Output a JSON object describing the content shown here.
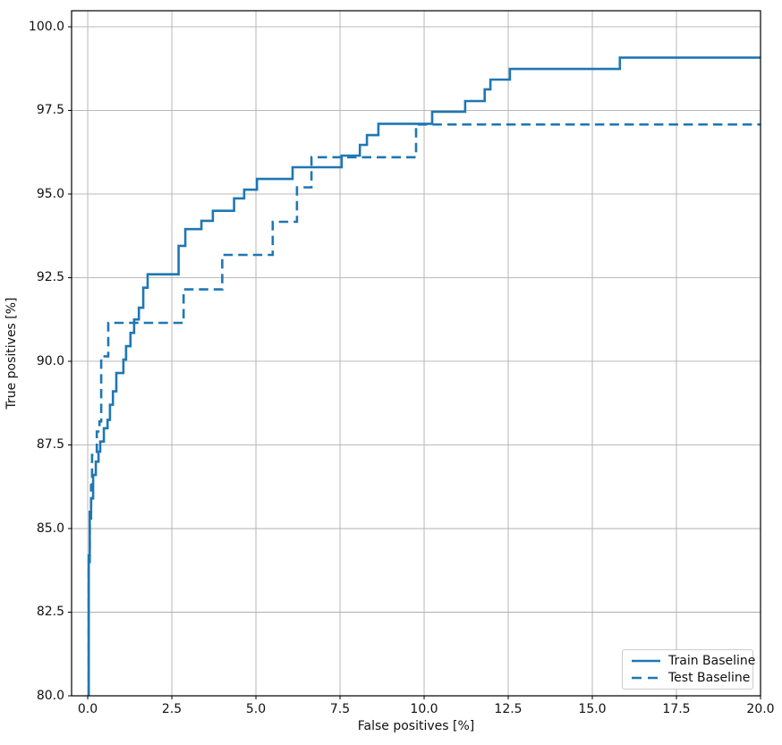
{
  "chart_data": {
    "type": "line",
    "subtype": "step-post-roc",
    "title": "",
    "xlabel": "False positives [%]",
    "ylabel": "True positives [%]",
    "xlim": [
      -0.48,
      20
    ],
    "ylim": [
      80,
      100.48
    ],
    "grid": true,
    "grid_color": "#b0b0b0",
    "spine_color": "#000000",
    "background_color": "#ffffff",
    "legend_position": "lower right",
    "x_ticks": [
      0.0,
      2.5,
      5.0,
      7.5,
      10.0,
      12.5,
      15.0,
      17.5,
      20.0
    ],
    "y_ticks": [
      80.0,
      82.5,
      85.0,
      87.5,
      90.0,
      92.5,
      95.0,
      97.5,
      100.0
    ],
    "x_tick_labels": [
      "0.0",
      "2.5",
      "5.0",
      "7.5",
      "10.0",
      "12.5",
      "15.0",
      "17.5",
      "20.0"
    ],
    "y_tick_labels": [
      "80.0",
      "82.5",
      "85.0",
      "87.5",
      "90.0",
      "92.5",
      "95.0",
      "97.5",
      "100.0"
    ],
    "series": [
      {
        "name": "Train Baseline",
        "style": "solid",
        "color": "#1f77b4",
        "line_width": 2.6,
        "points": [
          [
            0.03,
            80.0
          ],
          [
            0.03,
            84.0
          ],
          [
            0.06,
            84.0
          ],
          [
            0.06,
            85.3
          ],
          [
            0.1,
            85.3
          ],
          [
            0.1,
            85.9
          ],
          [
            0.16,
            85.9
          ],
          [
            0.16,
            86.6
          ],
          [
            0.24,
            86.6
          ],
          [
            0.24,
            87.0
          ],
          [
            0.32,
            87.0
          ],
          [
            0.32,
            87.3
          ],
          [
            0.37,
            87.3
          ],
          [
            0.37,
            87.6
          ],
          [
            0.48,
            87.6
          ],
          [
            0.48,
            88.0
          ],
          [
            0.59,
            88.0
          ],
          [
            0.59,
            88.25
          ],
          [
            0.66,
            88.25
          ],
          [
            0.66,
            88.7
          ],
          [
            0.75,
            88.7
          ],
          [
            0.75,
            89.1
          ],
          [
            0.85,
            89.1
          ],
          [
            0.85,
            89.65
          ],
          [
            1.06,
            89.65
          ],
          [
            1.06,
            90.05
          ],
          [
            1.14,
            90.05
          ],
          [
            1.14,
            90.45
          ],
          [
            1.27,
            90.45
          ],
          [
            1.27,
            90.85
          ],
          [
            1.38,
            90.85
          ],
          [
            1.38,
            91.25
          ],
          [
            1.52,
            91.25
          ],
          [
            1.52,
            91.6
          ],
          [
            1.65,
            91.6
          ],
          [
            1.65,
            92.2
          ],
          [
            1.78,
            92.2
          ],
          [
            1.78,
            92.6
          ],
          [
            2.7,
            92.6
          ],
          [
            2.7,
            93.45
          ],
          [
            2.9,
            93.45
          ],
          [
            2.9,
            93.95
          ],
          [
            3.38,
            93.95
          ],
          [
            3.38,
            94.2
          ],
          [
            3.72,
            94.2
          ],
          [
            3.72,
            94.5
          ],
          [
            4.35,
            94.5
          ],
          [
            4.35,
            94.87
          ],
          [
            4.65,
            94.87
          ],
          [
            4.65,
            95.13
          ],
          [
            5.03,
            95.13
          ],
          [
            5.03,
            95.45
          ],
          [
            6.09,
            95.45
          ],
          [
            6.09,
            95.8
          ],
          [
            7.55,
            95.8
          ],
          [
            7.55,
            96.15
          ],
          [
            8.09,
            96.15
          ],
          [
            8.09,
            96.47
          ],
          [
            8.3,
            96.47
          ],
          [
            8.3,
            96.76
          ],
          [
            8.64,
            96.76
          ],
          [
            8.64,
            97.1
          ],
          [
            10.24,
            97.1
          ],
          [
            10.24,
            97.46
          ],
          [
            11.22,
            97.46
          ],
          [
            11.22,
            97.78
          ],
          [
            11.8,
            97.78
          ],
          [
            11.8,
            98.13
          ],
          [
            11.97,
            98.13
          ],
          [
            11.97,
            98.42
          ],
          [
            12.55,
            98.42
          ],
          [
            12.55,
            98.74
          ],
          [
            15.82,
            98.74
          ],
          [
            15.82,
            99.08
          ],
          [
            20.0,
            99.08
          ]
        ]
      },
      {
        "name": "Test Baseline",
        "style": "dashed",
        "color": "#1f77b4",
        "line_width": 2.6,
        "points": [
          [
            0.03,
            80.0
          ],
          [
            0.03,
            84.2
          ],
          [
            0.06,
            84.2
          ],
          [
            0.06,
            85.5
          ],
          [
            0.1,
            85.5
          ],
          [
            0.1,
            86.3
          ],
          [
            0.13,
            86.3
          ],
          [
            0.13,
            87.2
          ],
          [
            0.27,
            87.2
          ],
          [
            0.27,
            87.9
          ],
          [
            0.35,
            87.9
          ],
          [
            0.35,
            88.2
          ],
          [
            0.4,
            88.2
          ],
          [
            0.4,
            90.15
          ],
          [
            0.61,
            90.15
          ],
          [
            0.61,
            91.15
          ],
          [
            2.85,
            91.15
          ],
          [
            2.85,
            92.15
          ],
          [
            4.0,
            92.15
          ],
          [
            4.0,
            93.18
          ],
          [
            5.5,
            93.18
          ],
          [
            5.5,
            94.17
          ],
          [
            6.22,
            94.17
          ],
          [
            6.22,
            95.2
          ],
          [
            6.65,
            95.2
          ],
          [
            6.65,
            96.1
          ],
          [
            9.76,
            96.1
          ],
          [
            9.76,
            97.08
          ],
          [
            20.0,
            97.08
          ]
        ]
      }
    ]
  },
  "legend": {
    "items": [
      {
        "label": "Train Baseline"
      },
      {
        "label": "Test Baseline"
      }
    ]
  }
}
